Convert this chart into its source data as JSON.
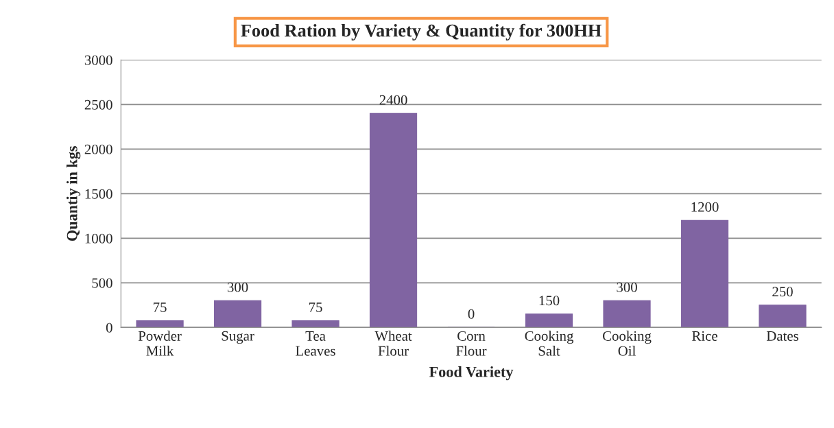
{
  "chart_data": {
    "type": "bar",
    "title": "Food Ration by Variety & Quantity for 300HH",
    "xlabel": "Food Variety",
    "ylabel": "Quantiy in kgs",
    "categories": [
      "Powder\nMilk",
      "Sugar",
      "Tea\nLeaves",
      "Wheat\nFlour",
      "Corn\nFlour",
      "Cooking\nSalt",
      "Cooking\nOil",
      "Rice",
      "Dates"
    ],
    "values": [
      75,
      300,
      75,
      2400,
      0,
      150,
      300,
      1200,
      250
    ],
    "color": "#8064a2",
    "ylim": [
      0,
      3000
    ],
    "yticks": [
      0,
      500,
      1000,
      1500,
      2000,
      2500,
      3000
    ],
    "grid": "y",
    "data_labels": true,
    "legend": false
  }
}
